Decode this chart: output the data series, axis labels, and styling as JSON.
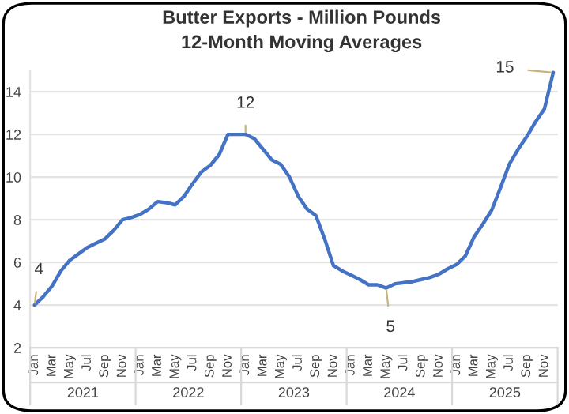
{
  "chart_data": {
    "type": "line",
    "title": "Butter Exports - Million Pounds",
    "subtitle": "12-Month Moving Averages",
    "categories": [
      "Jan",
      null,
      "Mar",
      null,
      "May",
      null,
      "Jul",
      null,
      "Sep",
      null,
      "Nov",
      null,
      "Jan",
      null,
      "Mar",
      null,
      "May",
      null,
      "Jul",
      null,
      "Sep",
      null,
      "Nov",
      null,
      "Jan",
      null,
      "Mar",
      null,
      "May",
      null,
      "Jul",
      null,
      "Sep",
      null,
      "Nov",
      null,
      "Jan",
      null,
      "Mar",
      null,
      "May",
      null,
      "Jul",
      null,
      "Sep",
      null,
      "Nov",
      null,
      "Jan",
      null,
      "Mar",
      null,
      "May",
      null,
      "Jul",
      null,
      "Sep",
      null,
      "Nov",
      null
    ],
    "series": [
      {
        "color": "#4472c4",
        "values": [
          4.0,
          4.4,
          4.9,
          5.6,
          6.1,
          6.4,
          6.7,
          6.9,
          7.1,
          7.5,
          8.0,
          8.1,
          8.25,
          8.5,
          8.85,
          8.8,
          8.7,
          9.1,
          9.7,
          10.25,
          10.55,
          11.05,
          12.0,
          12.0,
          12.0,
          11.8,
          11.3,
          10.8,
          10.6,
          10.0,
          9.1,
          8.5,
          8.2,
          7.1,
          5.85,
          5.6,
          5.4,
          5.2,
          4.95,
          4.95,
          4.8,
          5.0,
          5.05,
          5.1,
          5.2,
          5.3,
          5.45,
          5.7,
          5.9,
          6.3,
          7.2,
          7.8,
          8.45,
          9.5,
          10.6,
          11.3,
          11.9,
          12.6,
          13.2,
          14.9
        ],
        "value_labels": [
          "4",
          null,
          null,
          null,
          null,
          null,
          null,
          null,
          null,
          null,
          null,
          null,
          null,
          null,
          null,
          null,
          null,
          null,
          null,
          null,
          null,
          null,
          null,
          null,
          "12",
          null,
          null,
          null,
          null,
          null,
          null,
          null,
          null,
          null,
          null,
          null,
          null,
          null,
          null,
          null,
          "5",
          null,
          null,
          null,
          null,
          null,
          null,
          null,
          null,
          null,
          null,
          null,
          null,
          null,
          null,
          null,
          null,
          null,
          null,
          "15"
        ]
      }
    ],
    "annotations": [
      "2021",
      "2022",
      "2023",
      "2024",
      "2025"
    ],
    "ylim": [
      2,
      15
    ],
    "yticks": [
      2,
      4,
      6,
      8,
      10,
      12,
      14
    ],
    "grid": "y",
    "legend": false,
    "marker": "none",
    "line_style": "solid"
  }
}
